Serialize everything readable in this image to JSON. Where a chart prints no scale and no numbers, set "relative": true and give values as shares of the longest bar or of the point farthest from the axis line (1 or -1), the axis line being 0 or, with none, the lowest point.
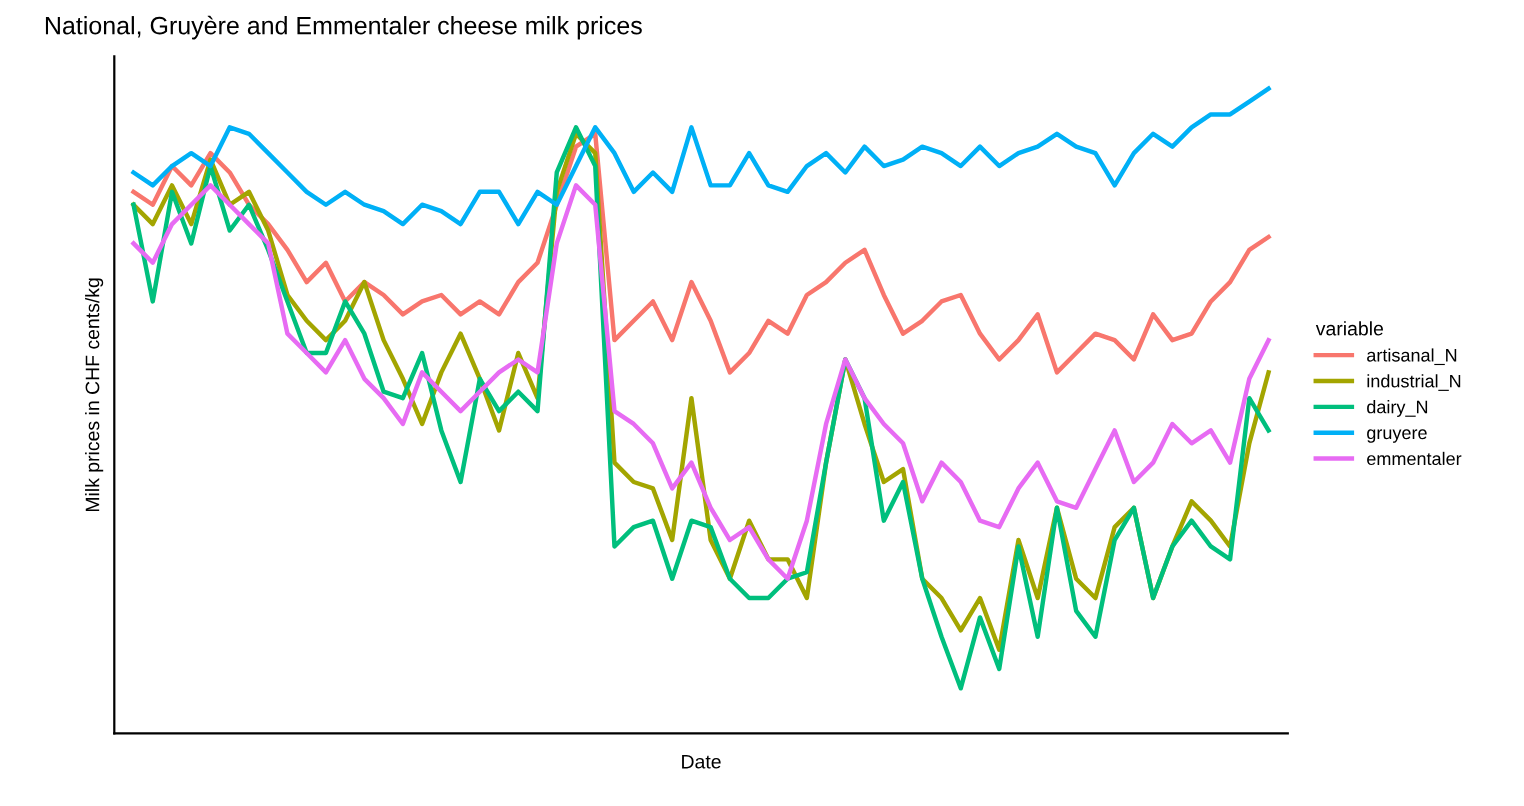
{
  "chart_data": {
    "type": "line",
    "title": "National, Gruyère and Emmentaler cheese milk prices",
    "xlabel": "Date",
    "ylabel": "Milk prices in CHF cents/kg",
    "legend_title": "variable",
    "legend": "right",
    "grid": false,
    "relative": true,
    "tick_labels": false,
    "categories": [
      null,
      null,
      null,
      null,
      null,
      null,
      null,
      null,
      null,
      null,
      null,
      null,
      null,
      null,
      null,
      null,
      null,
      null,
      null,
      null,
      null,
      null,
      null,
      null,
      null,
      null,
      null,
      null,
      null,
      null,
      null,
      null,
      null,
      null,
      null,
      null,
      null,
      null,
      null,
      null,
      null,
      null,
      null,
      null,
      null,
      null,
      null,
      null,
      null,
      null,
      null,
      null,
      null,
      null,
      null,
      null,
      null,
      null,
      null,
      null
    ],
    "series": [
      {
        "name": "artisanal_N",
        "color": "#f8766d",
        "values": [
          0.84,
          0.82,
          0.88,
          0.85,
          0.9,
          0.87,
          0.82,
          0.79,
          0.75,
          0.7,
          0.73,
          0.67,
          0.7,
          0.68,
          0.65,
          0.67,
          0.68,
          0.65,
          0.67,
          0.65,
          0.7,
          0.73,
          0.82,
          0.91,
          0.93,
          0.61,
          0.64,
          0.67,
          0.61,
          0.7,
          0.64,
          0.56,
          0.59,
          0.64,
          0.62,
          0.68,
          0.7,
          0.73,
          0.75,
          0.68,
          0.62,
          0.64,
          0.67,
          0.68,
          0.62,
          0.58,
          0.61,
          0.65,
          0.56,
          0.59,
          0.62,
          0.61,
          0.58,
          0.65,
          0.61,
          0.62,
          0.67,
          0.7,
          0.75,
          0.77
        ]
      },
      {
        "name": "industrial_N",
        "color": "#a3a500",
        "values": [
          0.82,
          0.79,
          0.85,
          0.79,
          0.89,
          0.82,
          0.84,
          0.78,
          0.68,
          0.64,
          0.61,
          0.64,
          0.7,
          0.61,
          0.55,
          0.48,
          0.56,
          0.62,
          0.55,
          0.47,
          0.59,
          0.52,
          0.84,
          0.93,
          0.9,
          0.42,
          0.39,
          0.38,
          0.3,
          0.52,
          0.3,
          0.24,
          0.33,
          0.27,
          0.27,
          0.21,
          0.42,
          0.58,
          0.48,
          0.39,
          0.41,
          0.24,
          0.21,
          0.16,
          0.21,
          0.13,
          0.3,
          0.21,
          0.35,
          0.24,
          0.21,
          0.32,
          0.35,
          0.21,
          0.29,
          0.36,
          0.33,
          0.29,
          0.45,
          0.56
        ]
      },
      {
        "name": "dairy_N",
        "color": "#00bf7d",
        "values": [
          0.82,
          0.67,
          0.84,
          0.76,
          0.88,
          0.78,
          0.82,
          0.75,
          0.67,
          0.59,
          0.59,
          0.67,
          0.62,
          0.53,
          0.52,
          0.59,
          0.47,
          0.39,
          0.55,
          0.5,
          0.53,
          0.5,
          0.87,
          0.94,
          0.88,
          0.29,
          0.32,
          0.33,
          0.24,
          0.33,
          0.32,
          0.24,
          0.21,
          0.21,
          0.24,
          0.25,
          0.42,
          0.58,
          0.52,
          0.33,
          0.39,
          0.24,
          0.15,
          0.07,
          0.18,
          0.1,
          0.29,
          0.15,
          0.35,
          0.19,
          0.15,
          0.3,
          0.35,
          0.21,
          0.29,
          0.33,
          0.29,
          0.27,
          0.52,
          0.47
        ]
      },
      {
        "name": "gruyere",
        "color": "#00b0f6",
        "values": [
          0.87,
          0.85,
          0.88,
          0.9,
          0.88,
          0.94,
          0.93,
          0.9,
          0.87,
          0.84,
          0.82,
          0.84,
          0.82,
          0.81,
          0.79,
          0.82,
          0.81,
          0.79,
          0.84,
          0.84,
          0.79,
          0.84,
          0.82,
          0.88,
          0.94,
          0.9,
          0.84,
          0.87,
          0.84,
          0.94,
          0.85,
          0.85,
          0.9,
          0.85,
          0.84,
          0.88,
          0.9,
          0.87,
          0.91,
          0.88,
          0.89,
          0.91,
          0.9,
          0.88,
          0.91,
          0.88,
          0.9,
          0.91,
          0.93,
          0.91,
          0.9,
          0.85,
          0.9,
          0.93,
          0.91,
          0.94,
          0.96,
          0.96,
          0.98,
          1.0
        ]
      },
      {
        "name": "emmentaler",
        "color": "#e76bf3",
        "values": [
          0.76,
          0.73,
          0.79,
          0.82,
          0.85,
          0.82,
          0.79,
          0.76,
          0.62,
          0.59,
          0.56,
          0.61,
          0.55,
          0.52,
          0.48,
          0.56,
          0.53,
          0.5,
          0.53,
          0.56,
          0.58,
          0.56,
          0.76,
          0.85,
          0.82,
          0.5,
          0.48,
          0.45,
          0.38,
          0.42,
          0.35,
          0.3,
          0.32,
          0.27,
          0.24,
          0.33,
          0.48,
          0.58,
          0.52,
          0.48,
          0.45,
          0.36,
          0.42,
          0.39,
          0.33,
          0.32,
          0.38,
          0.42,
          0.36,
          0.35,
          0.41,
          0.47,
          0.39,
          0.42,
          0.48,
          0.45,
          0.47,
          0.42,
          0.55,
          0.61
        ]
      }
    ]
  }
}
